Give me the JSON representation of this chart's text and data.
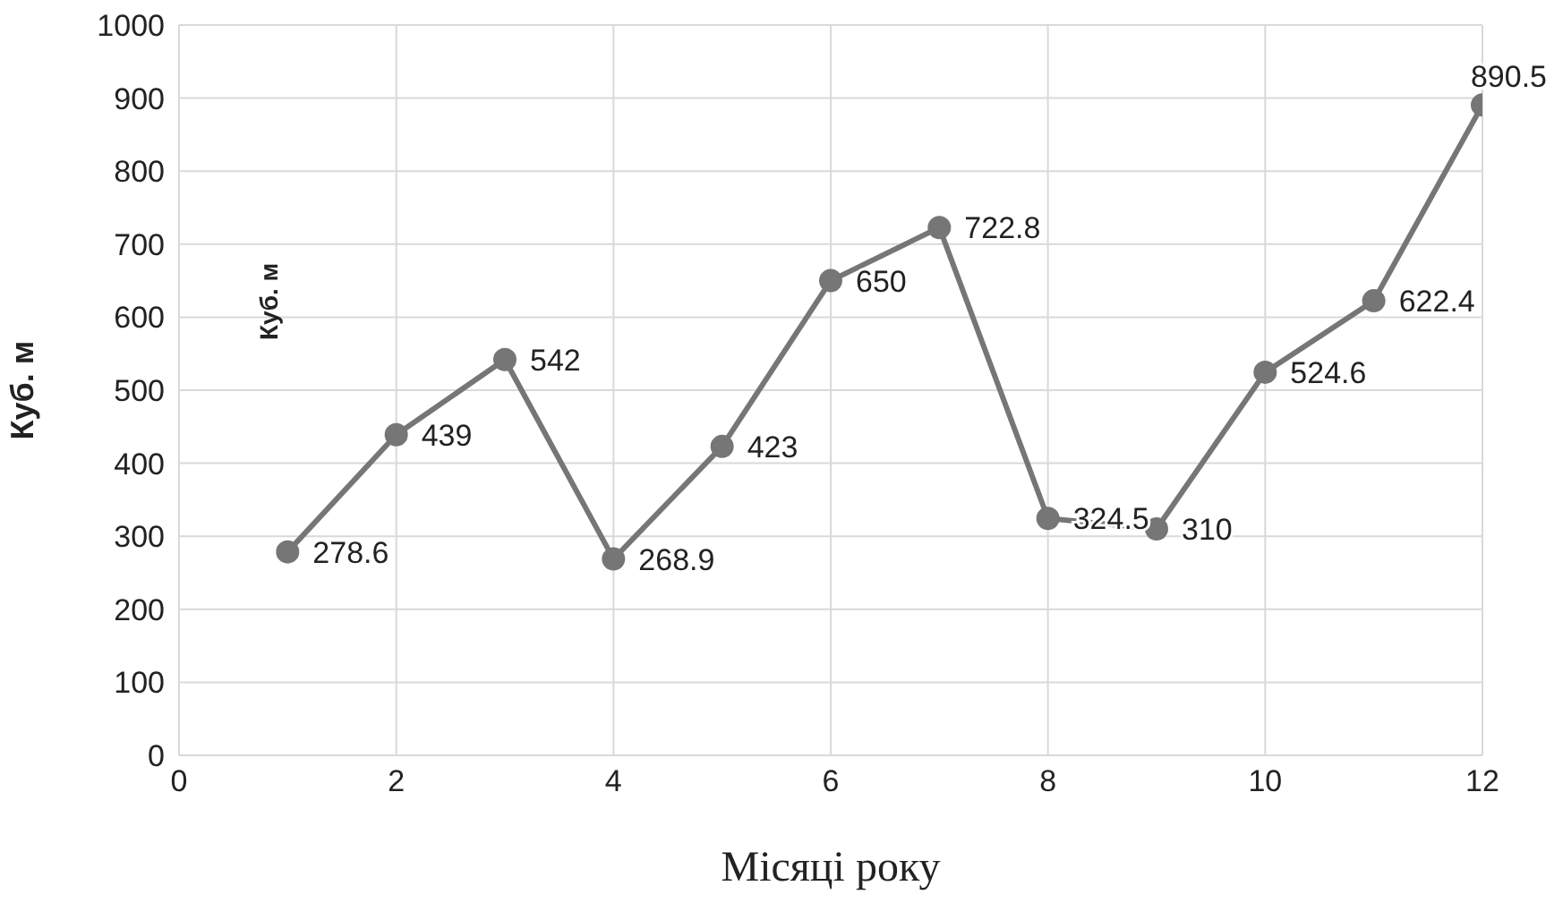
{
  "chart_data": {
    "type": "line",
    "xlabel": "Місяці року",
    "ylabel": "Куб. м",
    "annotations": [
      "Куб. м"
    ],
    "x": [
      1,
      2,
      3,
      4,
      5,
      6,
      7,
      8,
      9,
      10,
      11,
      12
    ],
    "series": [
      {
        "color": "#767676",
        "values": [
          278.6,
          439,
          542,
          268.9,
          423,
          650,
          722.8,
          324.5,
          310,
          524.6,
          622.4,
          890.5
        ]
      }
    ],
    "xlim": [
      0,
      12
    ],
    "xticks": [
      0,
      2,
      4,
      6,
      8,
      10,
      12
    ],
    "ylim": [
      0,
      1000
    ],
    "yticks": [
      0,
      100,
      200,
      300,
      400,
      500,
      600,
      700,
      800,
      900,
      1000
    ],
    "grid": true,
    "marker": "circle",
    "line_style": "solid",
    "data_labels": true
  }
}
